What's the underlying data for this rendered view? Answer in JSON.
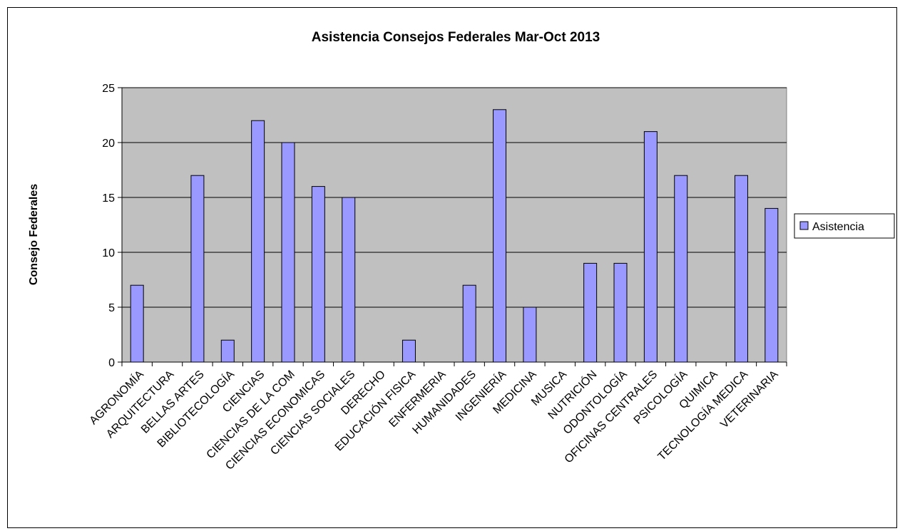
{
  "chart_data": {
    "type": "bar",
    "title": "Asistencia Consejos Federales Mar-Oct 2013",
    "xlabel": "",
    "ylabel": "Consejo Federales",
    "ylim": [
      0,
      25
    ],
    "yticks": [
      0,
      5,
      10,
      15,
      20,
      25
    ],
    "grid": true,
    "legend_position": "right",
    "categories": [
      "AGRONOMÍA",
      "ARQUITECTURA",
      "BELLAS ARTES",
      "BIBLIOTECOLOGÍA",
      "CIENCIAS",
      "CIENCIAS DE LA COM",
      "CIENCIAS ECONOMICAS",
      "CIENCIAS SOCIALES",
      "DERECHO",
      "EDUCACIÓN FISICA",
      "ENFERMERIA",
      "HUMANIDADES",
      "INGENIERÍA",
      "MEDICINA",
      "MUSICA",
      "NUTRICIÓN",
      "ODONTOLOGÍA",
      "OFICINAS CENTRALES",
      "PSICOLOGÍA",
      "QUIMICA",
      "TECNOLOGÍA MEDICA",
      "VETERINARIA"
    ],
    "series": [
      {
        "name": "Asistencia",
        "color": "#9999ff",
        "values": [
          7,
          0,
          17,
          2,
          22,
          20,
          16,
          15,
          0,
          2,
          0,
          7,
          23,
          5,
          0,
          9,
          9,
          21,
          17,
          0,
          17,
          14
        ]
      }
    ],
    "plot_background": "#c0c0c0"
  }
}
